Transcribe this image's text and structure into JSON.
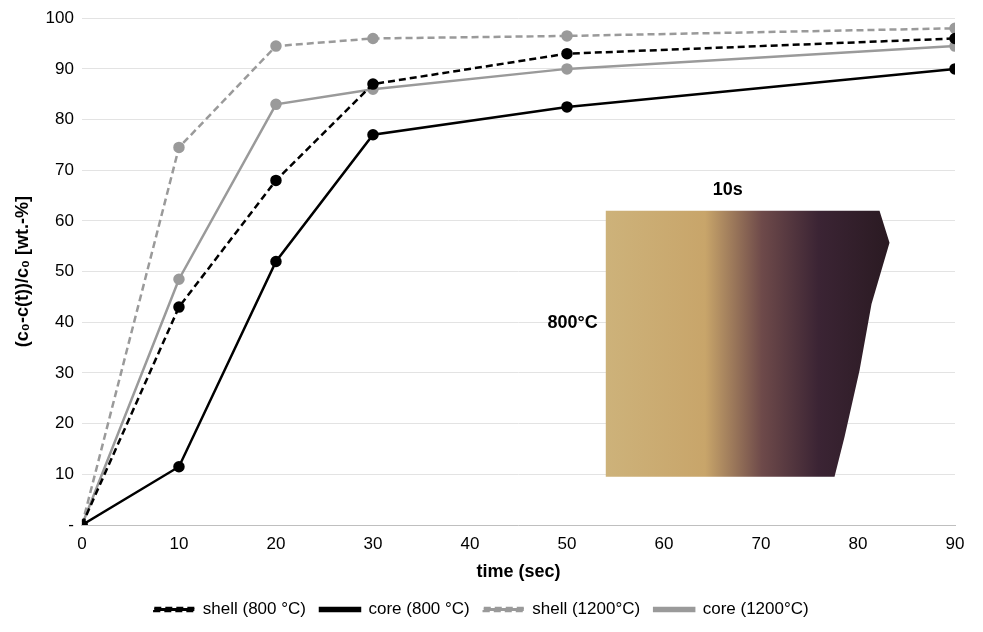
{
  "chart_data": {
    "type": "line",
    "x": [
      0,
      10,
      20,
      30,
      50,
      90
    ],
    "series": [
      {
        "name": "shell (800 °C)",
        "color": "#000000",
        "line_style": "dashed",
        "marker": "circle",
        "values": [
          0,
          43,
          68,
          87,
          93,
          96
        ]
      },
      {
        "name": "core (800 °C)",
        "color": "#000000",
        "line_style": "solid",
        "marker": "circle",
        "values": [
          0,
          11.5,
          52,
          77,
          82.5,
          90
        ]
      },
      {
        "name": "shell (1200°C)",
        "color": "#9a9a9a",
        "line_style": "dashed",
        "marker": "circle",
        "values": [
          0,
          74.5,
          94.5,
          96,
          96.5,
          98
        ]
      },
      {
        "name": "core (1200°C)",
        "color": "#9a9a9a",
        "line_style": "solid",
        "marker": "circle",
        "values": [
          0,
          48.5,
          83,
          86,
          90,
          94.5
        ]
      }
    ],
    "xlabel": "time (sec)",
    "ylabel": "(c₀-c(t))/c₀ [wt.-%]",
    "xlim": [
      0,
      90
    ],
    "xticks": [
      0,
      10,
      20,
      30,
      40,
      50,
      60,
      70,
      80,
      90
    ],
    "ylim": [
      0,
      100
    ],
    "yticks": [
      {
        "value": 0,
        "label": "-"
      },
      10,
      20,
      30,
      40,
      50,
      60,
      70,
      80,
      90,
      100
    ],
    "grid": true,
    "legend": "bottom",
    "annotations": [
      "10s",
      "800°C"
    ]
  }
}
